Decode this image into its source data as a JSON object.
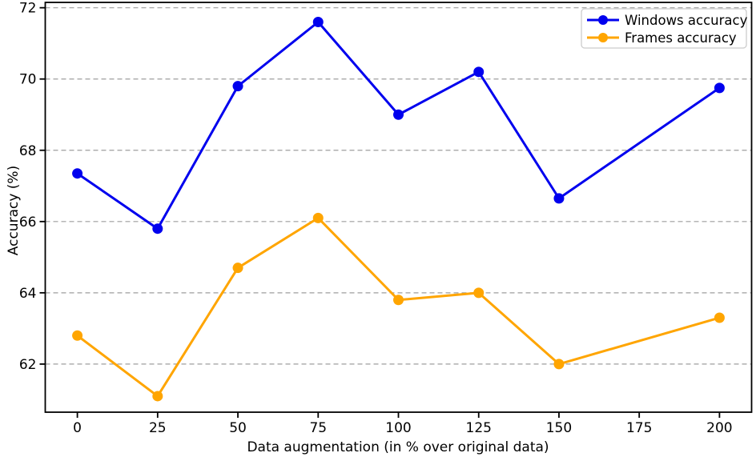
{
  "chart_data": {
    "type": "line",
    "title": "",
    "xlabel": "Data augmentation (in % over original data)",
    "ylabel": "Accuracy (%)",
    "x": [
      0,
      25,
      50,
      75,
      100,
      125,
      150,
      200
    ],
    "series": [
      {
        "name": "Windows accuracy",
        "color": "#0000ee",
        "values": [
          67.35,
          65.8,
          69.8,
          71.6,
          69.0,
          70.2,
          66.65,
          69.75
        ]
      },
      {
        "name": "Frames accuracy",
        "color": "#ffa500",
        "values": [
          62.8,
          61.1,
          64.7,
          66.1,
          63.8,
          64.0,
          62.0,
          63.3
        ]
      }
    ],
    "xticks": [
      0,
      25,
      50,
      75,
      100,
      125,
      150,
      175,
      200
    ],
    "yticks": [
      62,
      64,
      66,
      68,
      70,
      72
    ],
    "xlim": [
      -10,
      210
    ],
    "ylim": [
      60.65,
      72.15
    ],
    "grid": "horizontal-dashed",
    "legend_position": "top-right",
    "colors": {
      "background": "#ffffff",
      "grid": "#9e9e9e",
      "axis": "#000000",
      "legend_border": "#cccccc",
      "legend_fill": "#ffffff"
    }
  }
}
